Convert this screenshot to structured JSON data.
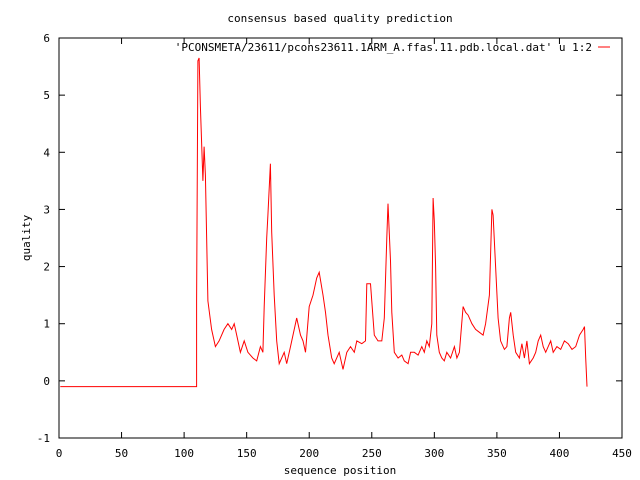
{
  "chart_data": {
    "type": "line",
    "title": "consensus based quality prediction",
    "xlabel": "sequence position",
    "ylabel": "quality",
    "xlim": [
      0,
      450
    ],
    "ylim": [
      -1,
      6
    ],
    "xticks": [
      0,
      50,
      100,
      150,
      200,
      250,
      300,
      350,
      400,
      450
    ],
    "yticks": [
      -1,
      0,
      1,
      2,
      3,
      4,
      5,
      6
    ],
    "grid": false,
    "legend_position": "top-right",
    "series": [
      {
        "name": "'PCONSMETA/23611/pcons23611.1ARM_A.ffas.11.pdb.local.dat' u 1:2",
        "color": "#ff0000",
        "x": [
          1,
          110,
          110,
          111,
          112,
          113,
          115,
          116,
          117,
          119,
          122,
          125,
          128,
          132,
          135,
          138,
          140,
          142,
          145,
          148,
          151,
          155,
          158,
          161,
          163,
          164,
          166,
          167,
          169,
          170,
          172,
          174,
          176,
          180,
          182,
          185,
          190,
          193,
          195,
          197,
          200,
          203,
          206,
          208,
          211,
          213,
          215,
          218,
          220,
          224,
          227,
          230,
          233,
          236,
          238,
          242,
          245,
          246,
          249,
          252,
          255,
          258,
          260,
          262,
          263,
          265,
          266,
          268,
          271,
          274,
          276,
          279,
          281,
          284,
          287,
          290,
          292,
          294,
          296,
          298,
          299,
          300,
          301,
          302,
          304,
          306,
          308,
          310,
          313,
          316,
          318,
          320,
          323,
          325,
          327,
          330,
          333,
          336,
          339,
          341,
          344,
          346,
          347,
          349,
          351,
          353,
          356,
          358,
          360,
          361,
          363,
          365,
          368,
          370,
          372,
          374,
          376,
          379,
          381,
          383,
          385,
          387,
          389,
          391,
          393,
          395,
          398,
          401,
          404,
          407,
          410,
          413,
          416,
          419,
          420,
          421,
          422
        ],
        "y": [
          -0.1,
          -0.1,
          1.4,
          5.6,
          5.65,
          4.8,
          3.5,
          4.1,
          3.6,
          1.4,
          0.9,
          0.6,
          0.7,
          0.9,
          1.0,
          0.9,
          1.0,
          0.8,
          0.5,
          0.7,
          0.5,
          0.4,
          0.35,
          0.6,
          0.5,
          1.3,
          2.5,
          2.9,
          3.8,
          2.6,
          1.5,
          0.7,
          0.3,
          0.5,
          0.3,
          0.6,
          1.1,
          0.8,
          0.7,
          0.5,
          1.3,
          1.5,
          1.8,
          1.9,
          1.5,
          1.2,
          0.8,
          0.4,
          0.3,
          0.5,
          0.2,
          0.5,
          0.6,
          0.5,
          0.7,
          0.65,
          0.7,
          1.7,
          1.7,
          0.8,
          0.7,
          0.7,
          1.1,
          2.5,
          3.1,
          2.1,
          1.2,
          0.5,
          0.4,
          0.45,
          0.35,
          0.3,
          0.5,
          0.5,
          0.45,
          0.6,
          0.5,
          0.7,
          0.6,
          1.0,
          3.2,
          2.8,
          2.0,
          0.8,
          0.5,
          0.4,
          0.35,
          0.5,
          0.4,
          0.6,
          0.4,
          0.5,
          1.3,
          1.2,
          1.15,
          1.0,
          0.9,
          0.85,
          0.8,
          1.0,
          1.5,
          3.0,
          2.9,
          2.0,
          1.1,
          0.7,
          0.55,
          0.6,
          1.1,
          1.2,
          0.8,
          0.5,
          0.4,
          0.65,
          0.4,
          0.7,
          0.3,
          0.4,
          0.5,
          0.7,
          0.8,
          0.6,
          0.5,
          0.6,
          0.7,
          0.5,
          0.6,
          0.55,
          0.7,
          0.65,
          0.55,
          0.6,
          0.8,
          0.9,
          0.95,
          0.4,
          -0.1
        ]
      }
    ]
  }
}
